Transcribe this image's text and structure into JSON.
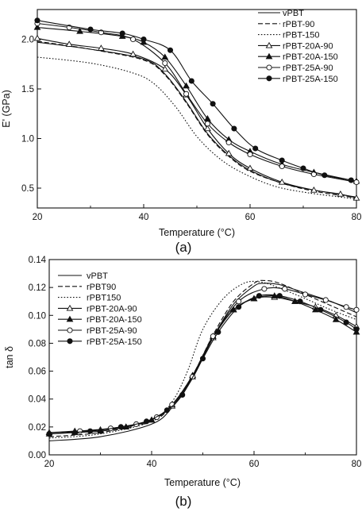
{
  "chart_data": [
    {
      "type": "line",
      "panel_label": "(a)",
      "xlabel": "Temperature (°C)",
      "ylabel": "E' (GPa)",
      "xlim": [
        20,
        80
      ],
      "ylim": [
        0.3,
        2.3
      ],
      "xticks": [
        20,
        40,
        60,
        80
      ],
      "yticks": [
        0.5,
        1.0,
        1.5,
        2.0
      ],
      "ytick_labels": [
        "0.5",
        "1.0",
        "1.5",
        "2.0"
      ],
      "legend_position": "top-right",
      "series": [
        {
          "name": "vPBT",
          "line": "solid",
          "marker": "none",
          "x": [
            20,
            30,
            40,
            44,
            48,
            52,
            56,
            60,
            66,
            72,
            80
          ],
          "y": [
            1.97,
            1.9,
            1.8,
            1.65,
            1.37,
            1.05,
            0.83,
            0.68,
            0.55,
            0.48,
            0.41
          ]
        },
        {
          "name": "rPBT-90",
          "line": "dashed",
          "marker": "none",
          "x": [
            20,
            30,
            40,
            44,
            48,
            52,
            56,
            60,
            66,
            72,
            80
          ],
          "y": [
            1.98,
            1.9,
            1.79,
            1.64,
            1.36,
            1.04,
            0.82,
            0.67,
            0.55,
            0.47,
            0.4
          ]
        },
        {
          "name": "rPBT-150",
          "line": "dotted",
          "marker": "none",
          "x": [
            20,
            30,
            38,
            42,
            46,
            50,
            54,
            58,
            64,
            70,
            80
          ],
          "y": [
            1.82,
            1.76,
            1.66,
            1.55,
            1.32,
            1.02,
            0.81,
            0.67,
            0.53,
            0.46,
            0.39
          ]
        },
        {
          "name": "rPBT-20A-90",
          "line": "solid",
          "marker": "open-triangle",
          "x": [
            20,
            26,
            32,
            38,
            44,
            48,
            52,
            56,
            60,
            66,
            72,
            77,
            80
          ],
          "y": [
            2.01,
            1.95,
            1.91,
            1.85,
            1.7,
            1.44,
            1.1,
            0.85,
            0.7,
            0.56,
            0.48,
            0.44,
            0.4
          ]
        },
        {
          "name": "rPBT-20A-150",
          "line": "solid",
          "marker": "filled-triangle",
          "x": [
            20,
            28,
            36,
            40,
            44,
            48,
            52,
            56,
            60,
            66,
            72,
            80
          ],
          "y": [
            2.12,
            2.08,
            2.03,
            1.97,
            1.82,
            1.53,
            1.2,
            0.99,
            0.87,
            0.74,
            0.66,
            0.57
          ]
        },
        {
          "name": "rPBT-25A-90",
          "line": "solid",
          "marker": "open-circle",
          "x": [
            20,
            26,
            32,
            38,
            44,
            48,
            52,
            56,
            60,
            66,
            72,
            80
          ],
          "y": [
            2.16,
            2.12,
            2.07,
            2.0,
            1.76,
            1.45,
            1.15,
            0.96,
            0.84,
            0.72,
            0.64,
            0.56
          ]
        },
        {
          "name": "rPBT-25A-150",
          "line": "solid",
          "marker": "filled-circle",
          "x": [
            20,
            30,
            36,
            40,
            45,
            49,
            53,
            57,
            61,
            66,
            70,
            74,
            79
          ],
          "y": [
            2.19,
            2.1,
            2.06,
            2.0,
            1.89,
            1.58,
            1.35,
            1.1,
            0.9,
            0.78,
            0.7,
            0.63,
            0.58
          ]
        }
      ]
    },
    {
      "type": "line",
      "panel_label": "(b)",
      "xlabel": "Temperature (°C)",
      "ylabel": "tan δ",
      "xlim": [
        20,
        80
      ],
      "ylim": [
        0,
        0.14
      ],
      "xticks": [
        20,
        40,
        60,
        80
      ],
      "yticks": [
        0,
        0.02,
        0.04,
        0.06,
        0.08,
        0.1,
        0.12,
        0.14
      ],
      "ytick_labels": [
        "0.00",
        "0.02",
        "0.04",
        "0.06",
        "0.08",
        "0.10",
        "0.12",
        "0.14"
      ],
      "legend_position": "top-left",
      "series": [
        {
          "name": "vPBT",
          "line": "solid",
          "marker": "none",
          "x": [
            20,
            30,
            40,
            44,
            48,
            52,
            56,
            60,
            62,
            65,
            70,
            75,
            80
          ],
          "y": [
            0.01,
            0.013,
            0.022,
            0.034,
            0.055,
            0.084,
            0.108,
            0.121,
            0.123,
            0.122,
            0.116,
            0.11,
            0.102
          ]
        },
        {
          "name": "rPBT90",
          "line": "dashed",
          "marker": "none",
          "x": [
            20,
            30,
            40,
            44,
            48,
            52,
            56,
            60,
            62,
            65,
            70,
            75,
            80
          ],
          "y": [
            0.013,
            0.016,
            0.024,
            0.036,
            0.057,
            0.086,
            0.11,
            0.123,
            0.125,
            0.123,
            0.115,
            0.107,
            0.099
          ]
        },
        {
          "name": "rPBT150",
          "line": "dotted",
          "marker": "none",
          "x": [
            20,
            30,
            40,
            44,
            47,
            50,
            54,
            58,
            61,
            64,
            70,
            75,
            80
          ],
          "y": [
            0.012,
            0.015,
            0.024,
            0.038,
            0.06,
            0.09,
            0.112,
            0.123,
            0.124,
            0.121,
            0.112,
            0.104,
            0.097
          ]
        },
        {
          "name": "rPBT-20A-90",
          "line": "solid",
          "marker": "open-triangle",
          "x": [
            20,
            25,
            30,
            35,
            40,
            44,
            48,
            52,
            56,
            60,
            64,
            68,
            72,
            76,
            80
          ],
          "y": [
            0.016,
            0.017,
            0.018,
            0.02,
            0.025,
            0.035,
            0.056,
            0.084,
            0.104,
            0.112,
            0.113,
            0.11,
            0.106,
            0.1,
            0.092
          ]
        },
        {
          "name": "rPBT-20A-150",
          "line": "solid",
          "marker": "filled-triangle",
          "x": [
            20,
            25,
            30,
            35,
            40,
            44,
            48,
            52,
            56,
            60,
            64,
            68,
            72,
            76,
            80
          ],
          "y": [
            0.015,
            0.016,
            0.017,
            0.02,
            0.025,
            0.036,
            0.057,
            0.085,
            0.104,
            0.112,
            0.114,
            0.11,
            0.104,
            0.097,
            0.088
          ]
        },
        {
          "name": "rPBT-25A-90",
          "line": "solid",
          "marker": "open-circle",
          "x": [
            20,
            26,
            32,
            37,
            41,
            44,
            48,
            52,
            57,
            62,
            66,
            70,
            74,
            78,
            80
          ],
          "y": [
            0.015,
            0.017,
            0.019,
            0.022,
            0.027,
            0.036,
            0.056,
            0.085,
            0.11,
            0.119,
            0.119,
            0.115,
            0.111,
            0.106,
            0.104
          ]
        },
        {
          "name": "rPBT-25A-150",
          "line": "solid",
          "marker": "filled-circle",
          "x": [
            20,
            28,
            34,
            39,
            43,
            46,
            50,
            53,
            57,
            61,
            65,
            69,
            73,
            78,
            80
          ],
          "y": [
            0.015,
            0.017,
            0.02,
            0.024,
            0.032,
            0.043,
            0.069,
            0.088,
            0.106,
            0.114,
            0.114,
            0.11,
            0.104,
            0.095,
            0.09
          ]
        }
      ]
    }
  ]
}
